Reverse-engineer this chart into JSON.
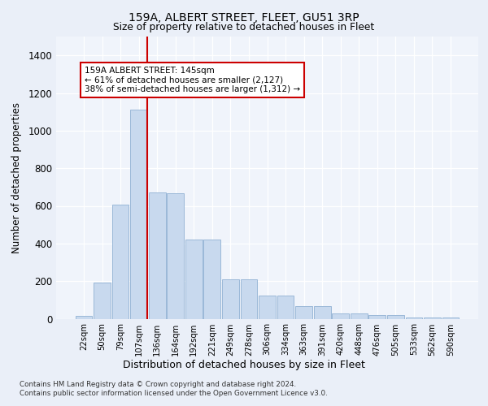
{
  "title1": "159A, ALBERT STREET, FLEET, GU51 3RP",
  "title2": "Size of property relative to detached houses in Fleet",
  "xlabel": "Distribution of detached houses by size in Fleet",
  "ylabel": "Number of detached properties",
  "categories": [
    "22sqm",
    "50sqm",
    "79sqm",
    "107sqm",
    "136sqm",
    "164sqm",
    "192sqm",
    "221sqm",
    "249sqm",
    "278sqm",
    "306sqm",
    "334sqm",
    "363sqm",
    "391sqm",
    "420sqm",
    "448sqm",
    "476sqm",
    "505sqm",
    "533sqm",
    "562sqm",
    "590sqm"
  ],
  "values": [
    15,
    190,
    608,
    1110,
    670,
    665,
    420,
    420,
    210,
    210,
    125,
    125,
    65,
    65,
    30,
    30,
    20,
    20,
    8,
    8,
    5
  ],
  "bar_color": "#c8d9ee",
  "bar_edge_color": "#9ab8d8",
  "annotation_text": "159A ALBERT STREET: 145sqm\n← 61% of detached houses are smaller (2,127)\n38% of semi-detached houses are larger (1,312) →",
  "vline_color": "#cc0000",
  "annotation_box_color": "#cc0000",
  "ylim": [
    0,
    1500
  ],
  "yticks": [
    0,
    200,
    400,
    600,
    800,
    1000,
    1200,
    1400
  ],
  "footer1": "Contains HM Land Registry data © Crown copyright and database right 2024.",
  "footer2": "Contains public sector information licensed under the Open Government Licence v3.0.",
  "bg_color": "#eaeff8",
  "plot_bg_color": "#f0f4fb"
}
